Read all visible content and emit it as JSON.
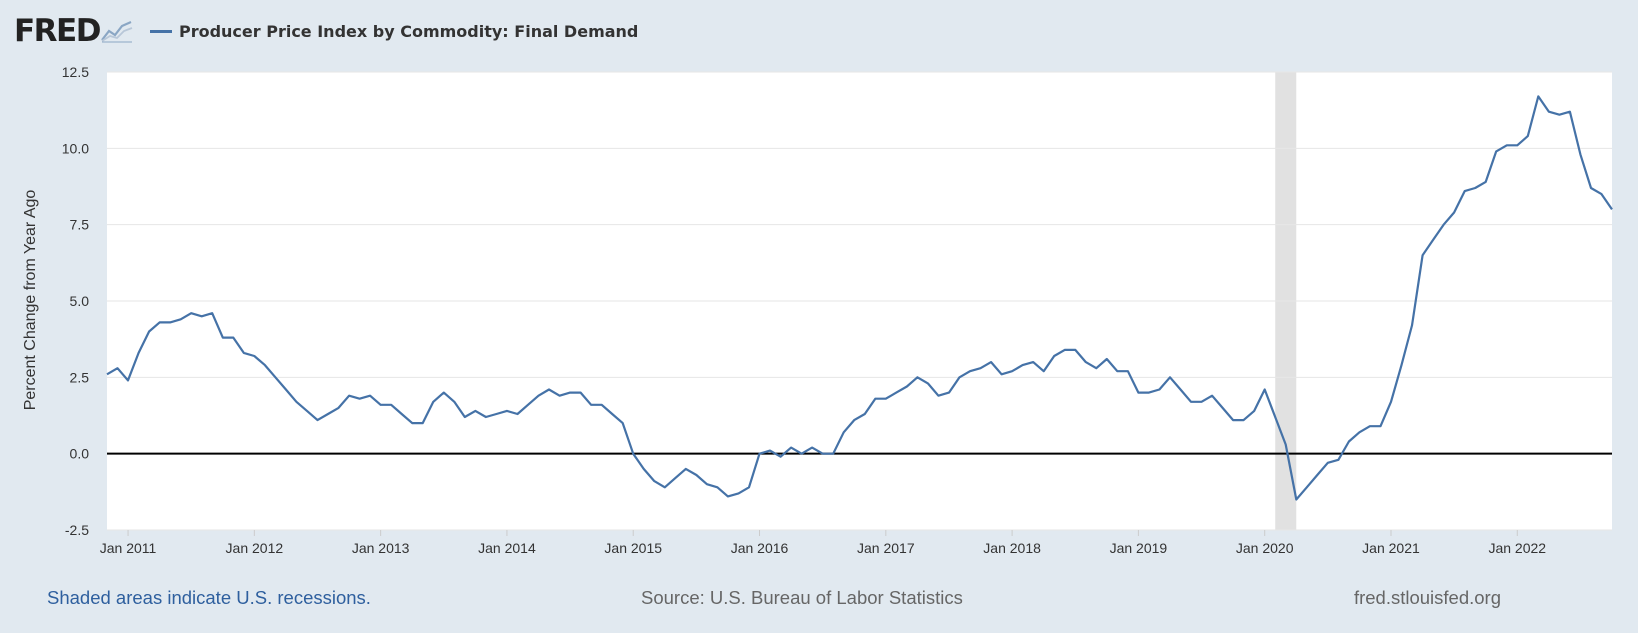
{
  "logo": {
    "text": "FRED",
    "icon": "fred-graph-icon"
  },
  "legend": {
    "label": "Producer Price Index by Commodity: Final Demand",
    "color": "#4572a7"
  },
  "footer": {
    "recession_note": "Shaded areas indicate U.S. recessions.",
    "source": "Source: U.S. Bureau of Labor Statistics",
    "site": "fred.stlouisfed.org"
  },
  "chart_data": {
    "type": "line",
    "title": "Producer Price Index by Commodity: Final Demand",
    "ylabel": "Percent Change from Year Ago",
    "xlabel": "",
    "ylim": [
      -2.5,
      12.5
    ],
    "yticks": [
      "-2.5",
      "0.0",
      "2.5",
      "5.0",
      "7.5",
      "10.0",
      "12.5"
    ],
    "xtick_labels": [
      "Jan 2011",
      "Jan 2012",
      "Jan 2013",
      "Jan 2014",
      "Jan 2015",
      "Jan 2016",
      "Jan 2017",
      "Jan 2018",
      "Jan 2019",
      "Jan 2020",
      "Jan 2021",
      "Jan 2022"
    ],
    "x_start": "2010-11",
    "x_end": "2022-10",
    "grid": true,
    "zero_line": true,
    "recessions": [
      {
        "start": "2020-02",
        "end": "2020-04"
      }
    ],
    "series": [
      {
        "name": "Producer Price Index by Commodity: Final Demand",
        "color": "#4572a7",
        "values": [
          2.6,
          2.8,
          2.4,
          3.3,
          4.0,
          4.3,
          4.3,
          4.4,
          4.6,
          4.5,
          4.6,
          3.8,
          3.8,
          3.3,
          3.2,
          2.9,
          2.5,
          2.1,
          1.7,
          1.4,
          1.1,
          1.3,
          1.5,
          1.9,
          1.8,
          1.9,
          1.6,
          1.6,
          1.3,
          1.0,
          1.0,
          1.7,
          2.0,
          1.7,
          1.2,
          1.4,
          1.2,
          1.3,
          1.4,
          1.3,
          1.6,
          1.9,
          2.1,
          1.9,
          2.0,
          2.0,
          1.6,
          1.6,
          1.3,
          1.0,
          0.0,
          -0.5,
          -0.9,
          -1.1,
          -0.8,
          -0.5,
          -0.7,
          -1.0,
          -1.1,
          -1.4,
          -1.3,
          -1.1,
          0.0,
          0.1,
          -0.1,
          0.2,
          0.0,
          0.2,
          0.0,
          0.0,
          0.7,
          1.1,
          1.3,
          1.8,
          1.8,
          2.0,
          2.2,
          2.5,
          2.3,
          1.9,
          2.0,
          2.5,
          2.7,
          2.8,
          3.0,
          2.6,
          2.7,
          2.9,
          3.0,
          2.7,
          3.2,
          3.4,
          3.4,
          3.0,
          2.8,
          3.1,
          2.7,
          2.7,
          2.0,
          2.0,
          2.1,
          2.5,
          2.1,
          1.7,
          1.7,
          1.9,
          1.5,
          1.1,
          1.1,
          1.4,
          2.1,
          1.2,
          0.3,
          -1.5,
          -1.1,
          -0.7,
          -0.3,
          -0.2,
          0.4,
          0.7,
          0.9,
          0.9,
          1.7,
          2.9,
          4.2,
          6.5,
          7.0,
          7.5,
          7.9,
          8.6,
          8.7,
          8.9,
          9.9,
          10.1,
          10.1,
          10.4,
          11.7,
          11.2,
          11.1,
          11.2,
          9.8,
          8.7,
          8.5,
          8.0
        ]
      }
    ]
  }
}
